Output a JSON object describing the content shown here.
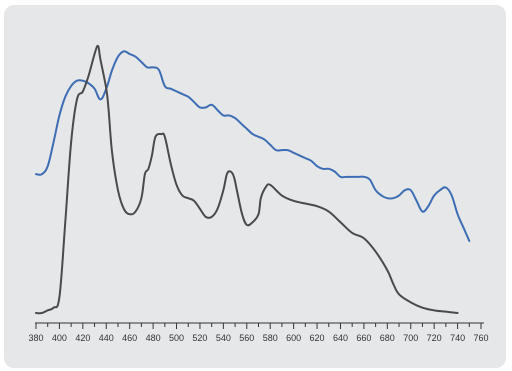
{
  "chart_data": {
    "type": "line",
    "title": "",
    "xlabel": "",
    "ylabel": "",
    "xlim": [
      380,
      760
    ],
    "ylim": [
      0,
      1
    ],
    "grid": false,
    "legend": "none",
    "x_ticks": [
      380,
      400,
      420,
      440,
      460,
      480,
      500,
      520,
      540,
      560,
      580,
      600,
      620,
      640,
      660,
      680,
      700,
      720,
      740,
      760
    ],
    "series": [
      {
        "color": "#3d6db5",
        "points": [
          [
            380,
            0.52
          ],
          [
            385,
            0.52
          ],
          [
            390,
            0.55
          ],
          [
            395,
            0.64
          ],
          [
            400,
            0.74
          ],
          [
            405,
            0.81
          ],
          [
            410,
            0.85
          ],
          [
            415,
            0.87
          ],
          [
            420,
            0.87
          ],
          [
            425,
            0.86
          ],
          [
            430,
            0.84
          ],
          [
            435,
            0.8
          ],
          [
            440,
            0.84
          ],
          [
            445,
            0.91
          ],
          [
            450,
            0.96
          ],
          [
            455,
            0.98
          ],
          [
            460,
            0.97
          ],
          [
            465,
            0.96
          ],
          [
            470,
            0.94
          ],
          [
            475,
            0.92
          ],
          [
            480,
            0.92
          ],
          [
            485,
            0.91
          ],
          [
            490,
            0.85
          ],
          [
            495,
            0.84
          ],
          [
            500,
            0.83
          ],
          [
            505,
            0.82
          ],
          [
            510,
            0.81
          ],
          [
            515,
            0.79
          ],
          [
            520,
            0.77
          ],
          [
            525,
            0.77
          ],
          [
            530,
            0.78
          ],
          [
            535,
            0.76
          ],
          [
            540,
            0.74
          ],
          [
            545,
            0.74
          ],
          [
            550,
            0.73
          ],
          [
            555,
            0.71
          ],
          [
            560,
            0.69
          ],
          [
            565,
            0.67
          ],
          [
            570,
            0.66
          ],
          [
            575,
            0.65
          ],
          [
            580,
            0.63
          ],
          [
            585,
            0.61
          ],
          [
            590,
            0.61
          ],
          [
            595,
            0.61
          ],
          [
            600,
            0.6
          ],
          [
            605,
            0.59
          ],
          [
            610,
            0.58
          ],
          [
            615,
            0.57
          ],
          [
            620,
            0.55
          ],
          [
            625,
            0.54
          ],
          [
            630,
            0.54
          ],
          [
            635,
            0.53
          ],
          [
            640,
            0.51
          ],
          [
            645,
            0.51
          ],
          [
            650,
            0.51
          ],
          [
            655,
            0.51
          ],
          [
            660,
            0.51
          ],
          [
            665,
            0.5
          ],
          [
            670,
            0.46
          ],
          [
            675,
            0.44
          ],
          [
            680,
            0.43
          ],
          [
            685,
            0.43
          ],
          [
            690,
            0.44
          ],
          [
            695,
            0.46
          ],
          [
            700,
            0.46
          ],
          [
            705,
            0.42
          ],
          [
            710,
            0.38
          ],
          [
            715,
            0.4
          ],
          [
            720,
            0.44
          ],
          [
            725,
            0.46
          ],
          [
            730,
            0.47
          ],
          [
            735,
            0.44
          ],
          [
            740,
            0.37
          ],
          [
            745,
            0.32
          ],
          [
            750,
            0.27
          ]
        ]
      },
      {
        "color": "#4a4a4a",
        "points": [
          [
            380,
            0.0
          ],
          [
            385,
            0.0
          ],
          [
            390,
            0.01
          ],
          [
            395,
            0.02
          ],
          [
            400,
            0.06
          ],
          [
            405,
            0.34
          ],
          [
            410,
            0.64
          ],
          [
            415,
            0.8
          ],
          [
            420,
            0.83
          ],
          [
            425,
            0.89
          ],
          [
            430,
            0.97
          ],
          [
            433,
            1.0
          ],
          [
            435,
            0.95
          ],
          [
            440,
            0.84
          ],
          [
            442,
            0.76
          ],
          [
            445,
            0.6
          ],
          [
            450,
            0.46
          ],
          [
            455,
            0.39
          ],
          [
            460,
            0.37
          ],
          [
            465,
            0.38
          ],
          [
            470,
            0.43
          ],
          [
            473,
            0.52
          ],
          [
            476,
            0.54
          ],
          [
            479,
            0.59
          ],
          [
            482,
            0.66
          ],
          [
            487,
            0.67
          ],
          [
            490,
            0.66
          ],
          [
            495,
            0.56
          ],
          [
            500,
            0.48
          ],
          [
            505,
            0.44
          ],
          [
            510,
            0.43
          ],
          [
            515,
            0.42
          ],
          [
            520,
            0.39
          ],
          [
            525,
            0.36
          ],
          [
            530,
            0.36
          ],
          [
            535,
            0.39
          ],
          [
            540,
            0.46
          ],
          [
            543,
            0.52
          ],
          [
            546,
            0.53
          ],
          [
            549,
            0.51
          ],
          [
            552,
            0.45
          ],
          [
            556,
            0.37
          ],
          [
            560,
            0.33
          ],
          [
            565,
            0.34
          ],
          [
            570,
            0.37
          ],
          [
            572,
            0.43
          ],
          [
            576,
            0.47
          ],
          [
            580,
            0.48
          ],
          [
            590,
            0.44
          ],
          [
            600,
            0.42
          ],
          [
            610,
            0.41
          ],
          [
            620,
            0.4
          ],
          [
            630,
            0.38
          ],
          [
            640,
            0.34
          ],
          [
            650,
            0.3
          ],
          [
            660,
            0.28
          ],
          [
            670,
            0.23
          ],
          [
            680,
            0.16
          ],
          [
            685,
            0.11
          ],
          [
            690,
            0.07
          ],
          [
            700,
            0.04
          ],
          [
            710,
            0.02
          ],
          [
            720,
            0.01
          ],
          [
            730,
            0.005
          ],
          [
            740,
            0.0
          ]
        ]
      }
    ]
  }
}
